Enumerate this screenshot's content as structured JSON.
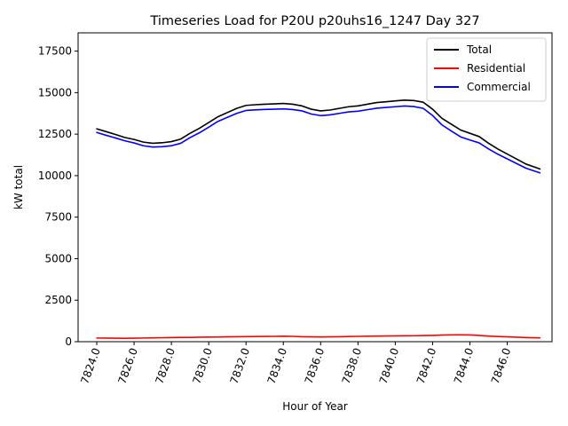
{
  "chart_data": {
    "type": "line",
    "title": "Timeseries Load for P20U p20uhs16_1247  Day 327",
    "xlabel": "Hour of Year",
    "ylabel": "kW total",
    "xlim": [
      7823.0,
      7848.4
    ],
    "ylim": [
      0,
      18600
    ],
    "xticks": [
      7824,
      7826,
      7828,
      7830,
      7832,
      7834,
      7836,
      7838,
      7840,
      7842,
      7844,
      7846
    ],
    "xtick_labels": [
      "7824.0",
      "7826.0",
      "7828.0",
      "7830.0",
      "7832.0",
      "7834.0",
      "7836.0",
      "7838.0",
      "7840.0",
      "7842.0",
      "7844.0",
      "7846.0"
    ],
    "yticks": [
      0,
      2500,
      5000,
      7500,
      10000,
      12500,
      15000,
      17500
    ],
    "ytick_labels": [
      "0",
      "2500",
      "5000",
      "7500",
      "10000",
      "12500",
      "15000",
      "17500"
    ],
    "grid": false,
    "legend_position": "top-right",
    "x": [
      7824.0,
      7824.5,
      7825.0,
      7825.5,
      7826.0,
      7826.5,
      7827.0,
      7827.5,
      7828.0,
      7828.5,
      7829.0,
      7829.5,
      7830.0,
      7830.5,
      7831.0,
      7831.5,
      7832.0,
      7832.5,
      7833.0,
      7833.5,
      7834.0,
      7834.5,
      7835.0,
      7835.5,
      7836.0,
      7836.5,
      7837.0,
      7837.5,
      7838.0,
      7838.5,
      7839.0,
      7839.5,
      7840.0,
      7840.5,
      7841.0,
      7841.5,
      7842.0,
      7842.5,
      7843.0,
      7843.5,
      7844.0,
      7844.5,
      7845.0,
      7845.5,
      7846.0,
      7846.5,
      7847.0,
      7847.75
    ],
    "series": [
      {
        "name": "Total",
        "color": "#000000",
        "values": [
          12820,
          12650,
          12480,
          12300,
          12180,
          12020,
          11950,
          11980,
          12050,
          12200,
          12550,
          12850,
          13200,
          13550,
          13800,
          14050,
          14230,
          14270,
          14300,
          14320,
          14350,
          14300,
          14200,
          14000,
          13900,
          13950,
          14050,
          14150,
          14200,
          14300,
          14400,
          14450,
          14500,
          14550,
          14520,
          14420,
          14000,
          13450,
          13100,
          12750,
          12550,
          12350,
          11950,
          11600,
          11300,
          11000,
          10700,
          10400
        ]
      },
      {
        "name": "Residential",
        "color": "#ff0000",
        "values": [
          220,
          215,
          210,
          205,
          210,
          220,
          230,
          240,
          250,
          255,
          260,
          270,
          275,
          280,
          290,
          300,
          305,
          310,
          315,
          320,
          330,
          320,
          300,
          290,
          285,
          290,
          300,
          310,
          320,
          330,
          340,
          345,
          350,
          355,
          360,
          370,
          380,
          395,
          410,
          415,
          405,
          380,
          340,
          310,
          290,
          270,
          250,
          230
        ]
      },
      {
        "name": "Commercial",
        "color": "#0000ff",
        "values": [
          12600,
          12430,
          12270,
          12100,
          11970,
          11800,
          11720,
          11740,
          11800,
          11950,
          12290,
          12580,
          12920,
          13270,
          13510,
          13750,
          13925,
          13960,
          13985,
          14000,
          14020,
          13980,
          13900,
          13710,
          13615,
          13660,
          13750,
          13840,
          13880,
          13970,
          14060,
          14105,
          14150,
          14195,
          14160,
          14050,
          13620,
          13055,
          12690,
          12335,
          12145,
          11970,
          11610,
          11290,
          11010,
          10730,
          10450,
          10170
        ]
      }
    ]
  }
}
